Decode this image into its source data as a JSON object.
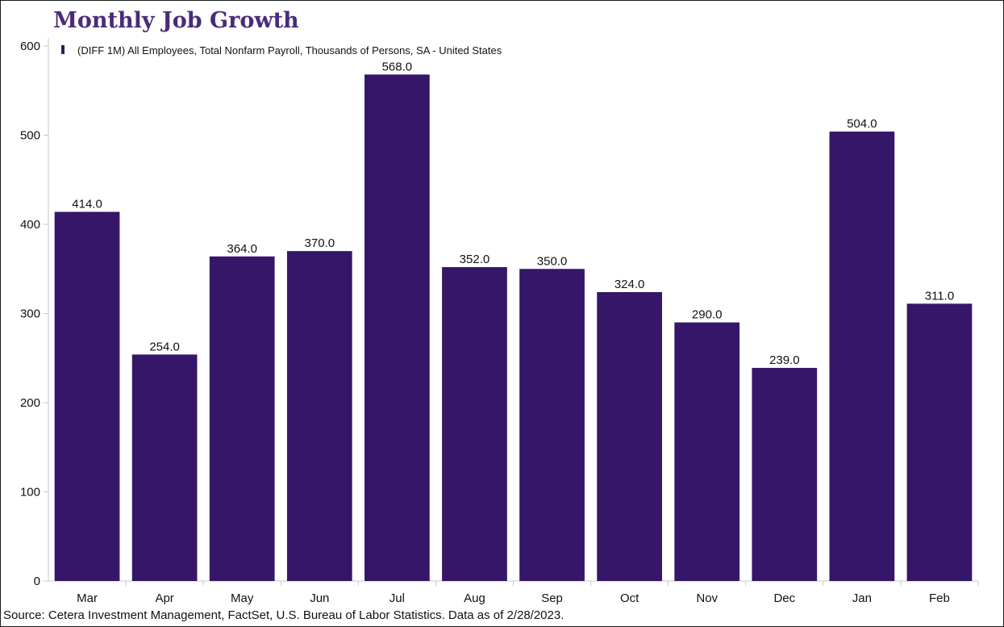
{
  "chart_data": {
    "type": "bar",
    "title": "Monthly Job Growth",
    "categories": [
      "Mar",
      "Apr",
      "May",
      "Jun",
      "Jul",
      "Aug",
      "Sep",
      "Oct",
      "Nov",
      "Dec",
      "Jan",
      "Feb"
    ],
    "series": [
      {
        "name": "(DIFF 1M) All Employees, Total Nonfarm Payroll, Thousands of Persons, SA - United States",
        "values": [
          414.0,
          254.0,
          364.0,
          370.0,
          568.0,
          352.0,
          350.0,
          324.0,
          290.0,
          239.0,
          504.0,
          311.0
        ],
        "data_labels": [
          "414.0",
          "254.0",
          "364.0",
          "370.0",
          "568.0",
          "352.0",
          "350.0",
          "324.0",
          "290.0",
          "239.0",
          "504.0",
          "311.0"
        ]
      }
    ],
    "ylim": [
      0,
      600
    ],
    "yticks": [
      0,
      100,
      200,
      300,
      400,
      500,
      600
    ],
    "xlabel": "",
    "ylabel": "",
    "grid": false,
    "legend_position": "top-left",
    "bar_color": "#351668",
    "title_color": "#4a2b7a"
  },
  "source_note": "Source: Cetera Investment Management, FactSet, U.S. Bureau of Labor Statistics. Data as of 2/28/2023."
}
